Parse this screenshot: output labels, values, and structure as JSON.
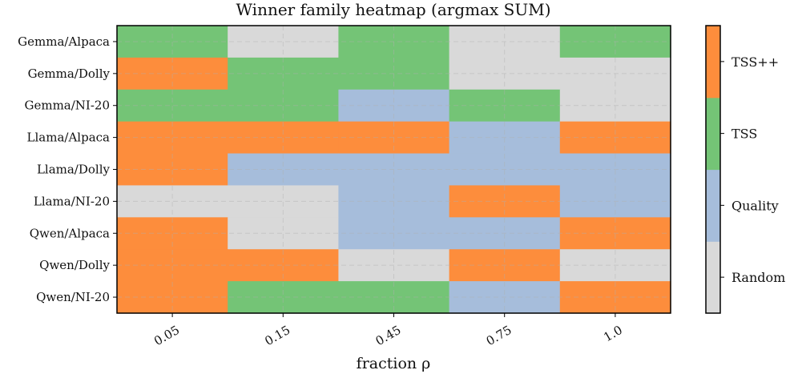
{
  "chart_data": {
    "type": "heatmap",
    "title": "Winner family heatmap (argmax SUM)",
    "xlabel": "fraction ρ",
    "ylabel": "",
    "x_categories": [
      "0.05",
      "0.15",
      "0.45",
      "0.75",
      "1.0"
    ],
    "y_categories": [
      "Gemma/Alpaca",
      "Gemma/Dolly",
      "Gemma/NI-20",
      "Llama/Alpaca",
      "Llama/Dolly",
      "Llama/NI-20",
      "Qwen/Alpaca",
      "Qwen/Dolly",
      "Qwen/NI-20"
    ],
    "classes": [
      "Random",
      "Quality",
      "TSS",
      "TSS++"
    ],
    "class_colors": {
      "Random": "#d9d9d9",
      "Quality": "#a6bddb",
      "TSS": "#74c476",
      "TSS++": "#fd8d3c"
    },
    "values": [
      [
        "TSS",
        "Random",
        "TSS",
        "Random",
        "TSS"
      ],
      [
        "TSS++",
        "TSS",
        "TSS",
        "Random",
        "Random"
      ],
      [
        "TSS",
        "TSS",
        "Quality",
        "TSS",
        "Random"
      ],
      [
        "TSS++",
        "TSS++",
        "TSS++",
        "Quality",
        "TSS++"
      ],
      [
        "TSS++",
        "Quality",
        "Quality",
        "Quality",
        "Quality"
      ],
      [
        "Random",
        "Random",
        "Quality",
        "TSS++",
        "Quality"
      ],
      [
        "TSS++",
        "Random",
        "Quality",
        "Quality",
        "TSS++"
      ],
      [
        "TSS++",
        "TSS++",
        "Random",
        "TSS++",
        "Random"
      ],
      [
        "TSS++",
        "TSS",
        "TSS",
        "Quality",
        "TSS++"
      ]
    ],
    "grid": true,
    "colorbar": {
      "placement": "right",
      "ticks": [
        "Random",
        "Quality",
        "TSS",
        "TSS++"
      ]
    }
  }
}
